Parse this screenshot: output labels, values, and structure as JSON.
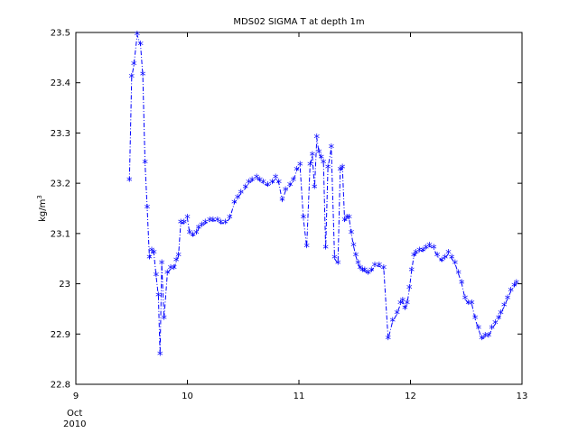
{
  "chart_data": {
    "type": "line",
    "title": "MDS02 SIGMA T at depth 1m",
    "ylabel_main": "kg/m",
    "ylabel_sup": "3",
    "xlabel_lines": [
      "Oct",
      "2010"
    ],
    "xlim": [
      9,
      13
    ],
    "ylim": [
      22.8,
      23.5
    ],
    "xticks": [
      9,
      10,
      11,
      12,
      13
    ],
    "xtick_labels": [
      "9",
      "10",
      "11",
      "12",
      "13"
    ],
    "yticks": [
      22.8,
      22.9,
      23.0,
      23.1,
      23.2,
      23.3,
      23.4,
      23.5
    ],
    "ytick_labels": [
      "22.8",
      "22.9",
      "23",
      "23.1",
      "23.2",
      "23.3",
      "23.4",
      "23.5"
    ],
    "grid": false,
    "line_style": "dash-dot",
    "marker": "*",
    "color": "#0000ff",
    "series": [
      {
        "x": [
          9.48,
          9.5,
          9.52,
          9.55,
          9.58,
          9.6,
          9.62,
          9.64,
          9.66,
          9.68,
          9.7,
          9.72,
          9.74,
          9.755,
          9.77,
          9.79,
          9.82,
          9.85,
          9.88,
          9.9,
          9.92,
          9.94,
          9.97,
          10.0,
          10.02,
          10.05,
          10.08,
          10.1,
          10.13,
          10.16,
          10.2,
          10.23,
          10.27,
          10.3,
          10.34,
          10.38,
          10.42,
          10.45,
          10.48,
          10.52,
          10.55,
          10.58,
          10.62,
          10.65,
          10.68,
          10.72,
          10.76,
          10.79,
          10.82,
          10.85,
          10.88,
          10.92,
          10.95,
          10.98,
          11.01,
          11.04,
          11.07,
          11.1,
          11.12,
          11.14,
          11.16,
          11.18,
          11.2,
          11.22,
          11.24,
          11.26,
          11.29,
          11.32,
          11.35,
          11.37,
          11.39,
          11.41,
          11.43,
          11.45,
          11.47,
          11.49,
          11.51,
          11.53,
          11.55,
          11.57,
          11.59,
          11.62,
          11.65,
          11.68,
          11.72,
          11.76,
          11.8,
          11.84,
          11.88,
          11.91,
          11.93,
          11.95,
          11.97,
          11.99,
          12.01,
          12.03,
          12.05,
          12.08,
          12.11,
          12.14,
          12.17,
          12.21,
          12.24,
          12.28,
          12.31,
          12.34,
          12.37,
          12.4,
          12.43,
          12.46,
          12.49,
          12.52,
          12.55,
          12.58,
          12.61,
          12.64,
          12.67,
          12.7,
          12.73,
          12.76,
          12.79,
          12.81,
          12.84,
          12.87,
          12.9,
          12.93,
          12.95
        ],
        "y": [
          23.205,
          23.41,
          23.435,
          23.495,
          23.475,
          23.415,
          23.24,
          23.15,
          23.05,
          23.065,
          23.06,
          23.015,
          22.975,
          22.858,
          23.04,
          22.93,
          23.02,
          23.03,
          23.03,
          23.045,
          23.055,
          23.12,
          23.12,
          23.13,
          23.1,
          23.095,
          23.1,
          23.11,
          23.115,
          23.12,
          23.125,
          23.125,
          23.125,
          23.12,
          23.12,
          23.13,
          23.16,
          23.17,
          23.18,
          23.19,
          23.2,
          23.205,
          23.21,
          23.205,
          23.2,
          23.195,
          23.2,
          23.21,
          23.2,
          23.165,
          23.185,
          23.195,
          23.205,
          23.225,
          23.235,
          23.13,
          23.073,
          23.235,
          23.255,
          23.19,
          23.29,
          23.26,
          23.25,
          23.24,
          23.07,
          23.23,
          23.27,
          23.05,
          23.04,
          23.225,
          23.23,
          23.125,
          23.13,
          23.13,
          23.1,
          23.075,
          23.055,
          23.04,
          23.03,
          23.025,
          23.025,
          23.02,
          23.025,
          23.035,
          23.035,
          23.03,
          22.89,
          22.925,
          22.94,
          22.96,
          22.965,
          22.95,
          22.96,
          22.99,
          23.025,
          23.055,
          23.06,
          23.065,
          23.065,
          23.07,
          23.075,
          23.07,
          23.055,
          23.045,
          23.05,
          23.06,
          23.05,
          23.04,
          23.02,
          23.0,
          22.97,
          22.96,
          22.96,
          22.93,
          22.91,
          22.89,
          22.895,
          22.895,
          22.91,
          22.92,
          22.93,
          22.94,
          22.955,
          22.97,
          22.985,
          22.995,
          23.0
        ]
      }
    ]
  }
}
